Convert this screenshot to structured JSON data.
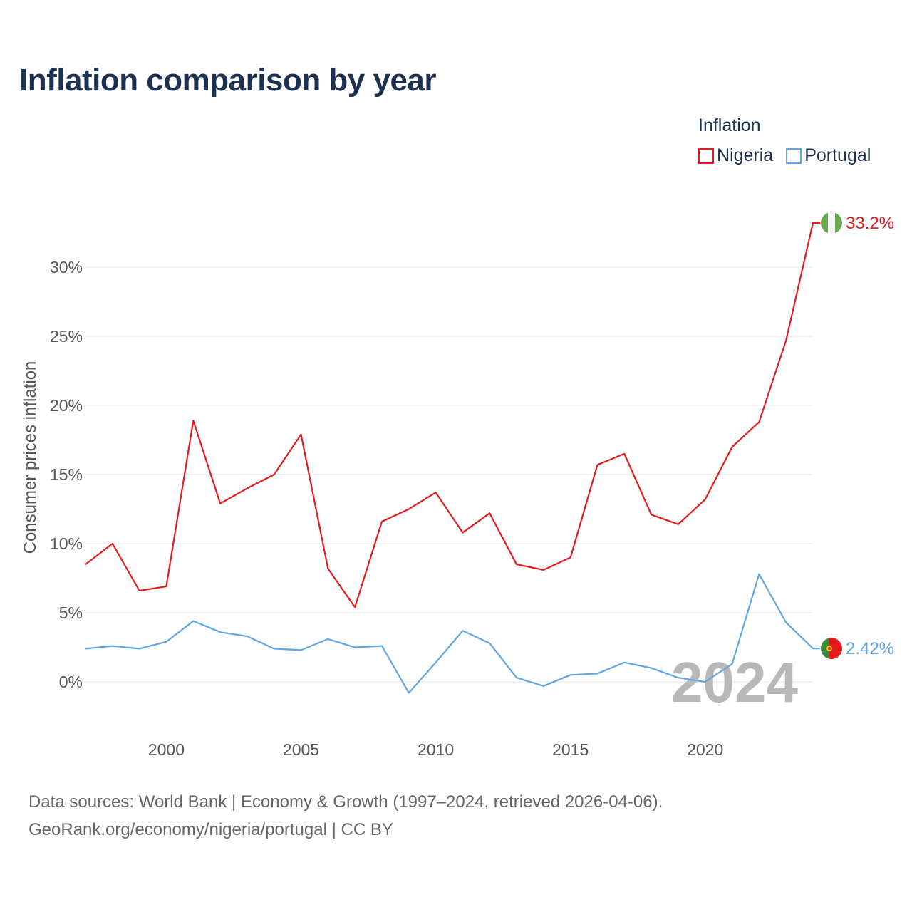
{
  "title": "Inflation comparison by year",
  "legend": {
    "title": "Inflation",
    "items": [
      {
        "label": "Nigeria",
        "color": "#e41a1c"
      },
      {
        "label": "Portugal",
        "color": "#5fa6e3"
      }
    ]
  },
  "footer": {
    "line1": "Data sources: World Bank | Economy & Growth (1997–2024, retrieved 2026-04-06).",
    "line2": "GeoRank.org/economy/nigeria/portugal | CC BY"
  },
  "watermark_year": "2024",
  "chart_data": {
    "type": "line",
    "title": "Inflation comparison by year",
    "xlabel": "",
    "ylabel": "Consumer prices inflation",
    "xlim": [
      1997,
      2024
    ],
    "ylim": [
      -3,
      33.2
    ],
    "y_ticks": [
      0,
      5,
      10,
      15,
      20,
      25,
      30
    ],
    "y_tick_labels": [
      "0%",
      "5%",
      "10%",
      "15%",
      "20%",
      "25%",
      "30%"
    ],
    "x_ticks": [
      2000,
      2005,
      2010,
      2015,
      2020
    ],
    "x_tick_labels": [
      "2000",
      "2005",
      "2010",
      "2015",
      "2020"
    ],
    "grid": true,
    "x": [
      1997,
      1998,
      1999,
      2000,
      2001,
      2002,
      2003,
      2004,
      2005,
      2006,
      2007,
      2008,
      2009,
      2010,
      2011,
      2012,
      2013,
      2014,
      2015,
      2016,
      2017,
      2018,
      2019,
      2020,
      2021,
      2022,
      2023,
      2024
    ],
    "series": [
      {
        "name": "Nigeria",
        "color": "#e41a1c",
        "end_label": "33.2%",
        "flag": "nigeria",
        "values": [
          8.5,
          10.0,
          6.6,
          6.9,
          18.9,
          12.9,
          14.0,
          15.0,
          17.9,
          8.2,
          5.4,
          11.6,
          12.5,
          13.7,
          10.8,
          12.2,
          8.5,
          8.1,
          9.0,
          15.7,
          16.5,
          12.1,
          11.4,
          13.2,
          17.0,
          18.8,
          24.7,
          33.2
        ]
      },
      {
        "name": "Portugal",
        "color": "#5fa6e3",
        "end_label": "2.42%",
        "flag": "portugal",
        "values": [
          2.4,
          2.6,
          2.4,
          2.9,
          4.4,
          3.6,
          3.3,
          2.4,
          2.3,
          3.1,
          2.5,
          2.6,
          -0.8,
          1.4,
          3.7,
          2.8,
          0.3,
          -0.3,
          0.5,
          0.6,
          1.4,
          1.0,
          0.3,
          0.0,
          1.3,
          7.8,
          4.3,
          2.42
        ]
      }
    ]
  }
}
